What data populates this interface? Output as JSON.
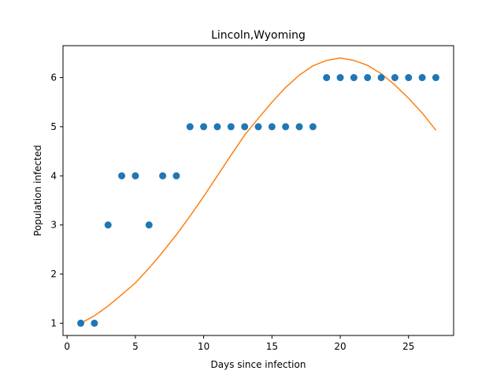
{
  "chart_data": {
    "type": "scatter",
    "title": "Lincoln,Wyoming",
    "xlabel": "Days since infection",
    "ylabel": "Population infected",
    "xlim": [
      -0.3,
      28.3
    ],
    "ylim": [
      0.75,
      6.65
    ],
    "xticks": [
      0,
      5,
      10,
      15,
      20,
      25
    ],
    "yticks": [
      1,
      2,
      3,
      4,
      5,
      6
    ],
    "grid": false,
    "series": [
      {
        "type": "scatter",
        "color": "#1f77b4",
        "x": [
          1,
          2,
          3,
          4,
          5,
          6,
          7,
          8,
          9,
          10,
          11,
          12,
          13,
          14,
          15,
          16,
          17,
          18,
          19,
          20,
          21,
          22,
          23,
          24,
          25,
          26,
          27
        ],
        "y": [
          1,
          1,
          3,
          4,
          4,
          3,
          4,
          4,
          5,
          5,
          5,
          5,
          5,
          5,
          5,
          5,
          5,
          5,
          6,
          6,
          6,
          6,
          6,
          6,
          6,
          6,
          6
        ]
      },
      {
        "type": "line",
        "color": "#ff7f0e",
        "x": [
          1,
          2,
          3,
          4,
          5,
          6,
          7,
          8,
          9,
          10,
          11,
          12,
          13,
          14,
          15,
          16,
          17,
          18,
          19,
          20,
          21,
          22,
          23,
          24,
          25,
          26,
          27
        ],
        "y": [
          1.0,
          1.15,
          1.35,
          1.58,
          1.82,
          2.12,
          2.45,
          2.8,
          3.18,
          3.58,
          4.0,
          4.42,
          4.83,
          5.17,
          5.5,
          5.8,
          6.05,
          6.24,
          6.35,
          6.4,
          6.35,
          6.25,
          6.08,
          5.85,
          5.58,
          5.28,
          4.93
        ]
      }
    ]
  }
}
